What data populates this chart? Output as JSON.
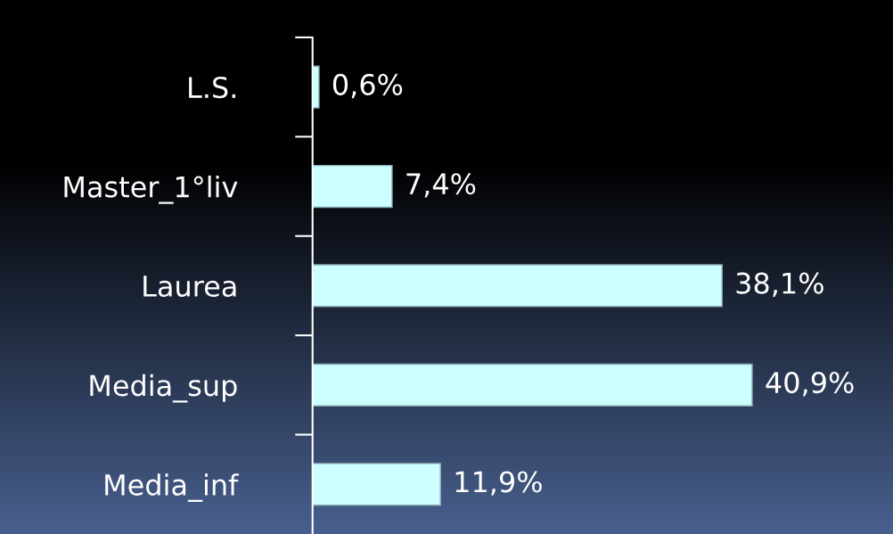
{
  "chart_data": {
    "type": "bar",
    "orientation": "horizontal",
    "categories": [
      "L.S.",
      "Master_1°liv",
      "Laurea",
      "Media_sup",
      "Media_inf"
    ],
    "values": [
      0.6,
      7.4,
      38.1,
      40.9,
      11.9
    ],
    "value_labels": [
      "0,6%",
      "7,4%",
      "38,1%",
      "40,9%",
      "11,9%"
    ],
    "color": "#ccffff",
    "grid": false,
    "legend": false
  }
}
